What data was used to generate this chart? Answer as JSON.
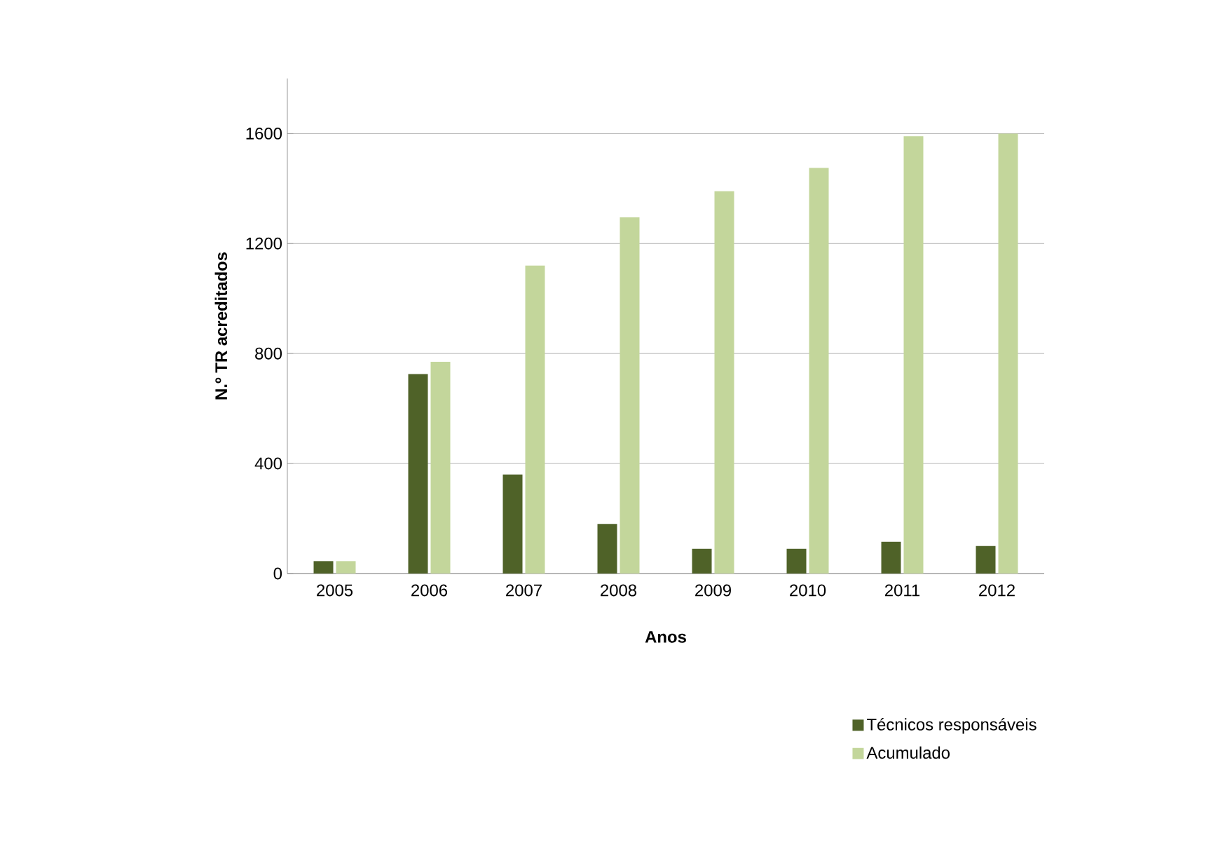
{
  "chart_data": {
    "type": "bar",
    "xlabel": "Anos",
    "ylabel": "N.º TR acreditados",
    "categories": [
      "2005",
      "2006",
      "2007",
      "2008",
      "2009",
      "2010",
      "2011",
      "2012"
    ],
    "series": [
      {
        "name": "Técnicos responsáveis",
        "color": "#4f6228",
        "values": [
          45,
          725,
          360,
          180,
          90,
          90,
          115,
          100
        ]
      },
      {
        "name": "Acumulado",
        "color": "#c3d69b",
        "values": [
          45,
          770,
          1120,
          1295,
          1390,
          1475,
          1590,
          1600
        ]
      }
    ],
    "ylim": [
      0,
      1800
    ],
    "yticks": [
      0,
      400,
      800,
      1200,
      1600
    ],
    "grid": "y",
    "legend": "bottom right"
  }
}
